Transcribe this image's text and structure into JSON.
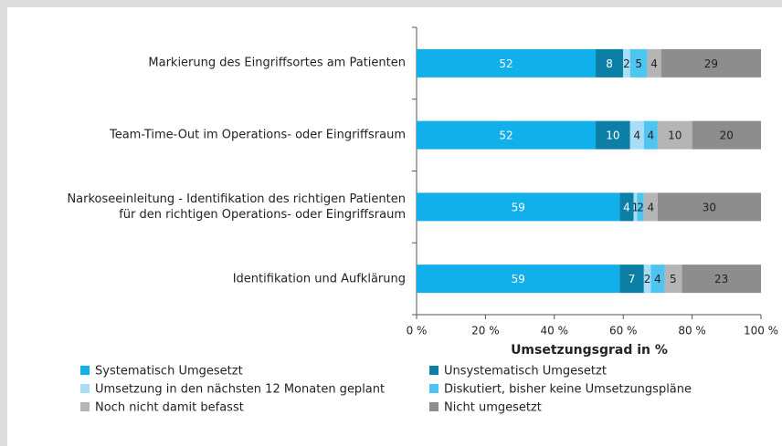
{
  "chart_data": {
    "type": "stacked_barh",
    "categories": [
      "Markierung des Eingriffsortes am Patienten",
      "Team-Time-Out im Operations- oder Eingriffsraum",
      "Narkoseeinleitung - Identifikation des richtigen Patienten\nfür den richtigen Operations- oder Eingriffsraum",
      "Identifikation und Aufklärung"
    ],
    "series": [
      {
        "name": "Systematisch Umgesetzt",
        "color": "#12b0ea",
        "values": [
          52,
          52,
          59,
          59
        ]
      },
      {
        "name": "Unsystematisch Umgesetzt",
        "color": "#0b7fa6",
        "values": [
          8,
          10,
          4,
          7
        ]
      },
      {
        "name": "Umsetzung in den nächsten 12 Monaten geplant",
        "color": "#a9ddf5",
        "values": [
          2,
          4,
          1,
          2
        ]
      },
      {
        "name": "Diskutiert, bisher keine Umsetzungspläne",
        "color": "#4dc5f0",
        "values": [
          5,
          4,
          2,
          4
        ]
      },
      {
        "name": "Noch nicht damit befasst",
        "color": "#b5b5b5",
        "values": [
          4,
          10,
          4,
          5
        ]
      },
      {
        "name": "Nicht umgesetzt",
        "color": "#8d8d8d",
        "values": [
          29,
          20,
          30,
          23
        ]
      }
    ],
    "xlabel": "Umsetzungsgrad in %",
    "xlim": [
      0,
      100
    ],
    "xticks": [
      {
        "value": 0,
        "label": "0 %"
      },
      {
        "value": 20,
        "label": "20 %"
      },
      {
        "value": 40,
        "label": "40 %"
      },
      {
        "value": 60,
        "label": "60 %"
      },
      {
        "value": 80,
        "label": "80 %"
      },
      {
        "value": 100,
        "label": "100 %"
      }
    ],
    "legend": "bottom"
  }
}
